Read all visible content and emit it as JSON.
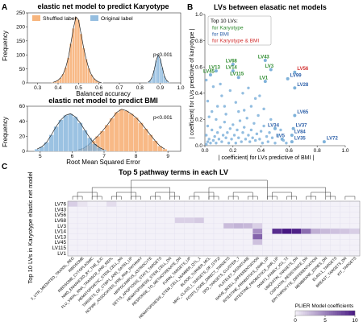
{
  "chart_data": [
    {
      "panel": "A",
      "type": "histogram",
      "title": "elastic net model to predict Karyotype",
      "xlabel": "Balanced accuracy",
      "ylabel": "Frequency",
      "xlim": [
        0.25,
        1.0
      ],
      "ylim": [
        0,
        250
      ],
      "xticks": [
        0.3,
        0.4,
        0.5,
        0.6,
        0.7,
        0.8,
        0.9,
        1.0
      ],
      "yticks": [
        0,
        50,
        100,
        150,
        200,
        250
      ],
      "legend": "top-left",
      "annotation": "p<0.001",
      "series": [
        {
          "name": "Shuffled label",
          "color": "#f5a25d",
          "x": [
            0.375,
            0.3875,
            0.4,
            0.4125,
            0.425,
            0.4375,
            0.45,
            0.4625,
            0.475,
            0.4875,
            0.5,
            0.5125,
            0.525,
            0.5375,
            0.55,
            0.5625,
            0.575,
            0.5875,
            0.6,
            0.6125
          ],
          "values": [
            2,
            5,
            10,
            18,
            32,
            55,
            90,
            140,
            195,
            235,
            225,
            175,
            125,
            85,
            52,
            30,
            16,
            8,
            3,
            1
          ]
        },
        {
          "name": "Original label",
          "color": "#7aaed8",
          "x": [
            0.84,
            0.85,
            0.86,
            0.87,
            0.88,
            0.89,
            0.9,
            0.91,
            0.92,
            0.93,
            0.94
          ],
          "values": [
            2,
            8,
            20,
            45,
            80,
            100,
            85,
            55,
            25,
            10,
            3
          ]
        }
      ]
    },
    {
      "panel": "A",
      "type": "histogram",
      "title": "elastic net model to predict BMI",
      "xlabel": "Root Mean Squared Error",
      "ylabel": "Frequency",
      "xlim": [
        4.6,
        9.4
      ],
      "ylim": [
        0,
        60
      ],
      "xticks": [
        5,
        6,
        7,
        8,
        9
      ],
      "yticks": [
        0,
        20,
        40,
        60
      ],
      "annotation": "p<0.001",
      "series": [
        {
          "name": "Shuffled label",
          "color": "#f5a25d",
          "x": [
            6.2,
            6.35,
            6.5,
            6.65,
            6.8,
            6.95,
            7.1,
            7.25,
            7.4,
            7.55,
            7.7,
            7.85,
            8.0,
            8.15,
            8.3,
            8.45,
            8.6,
            8.75,
            8.9
          ],
          "values": [
            2,
            4,
            8,
            14,
            20,
            27,
            35,
            44,
            52,
            56,
            54,
            50,
            45,
            38,
            30,
            22,
            14,
            7,
            3
          ]
        },
        {
          "name": "Original label",
          "color": "#7aaed8",
          "x": [
            4.9,
            5.05,
            5.2,
            5.35,
            5.5,
            5.65,
            5.8,
            5.95,
            6.1,
            6.25,
            6.4,
            6.55,
            6.7,
            6.85,
            7.0
          ],
          "values": [
            3,
            6,
            12,
            22,
            33,
            42,
            48,
            50,
            46,
            38,
            28,
            18,
            10,
            5,
            2
          ]
        }
      ]
    },
    {
      "panel": "B",
      "type": "scatter",
      "title": "LVs between elasatic net models",
      "xlabel": "| coefficient| for LVs predictive of BMI |",
      "ylabel": "| coefficient| for LVs predictive of karyotype |",
      "xlim": [
        0,
        1.0
      ],
      "ylim": [
        0,
        1.0
      ],
      "xticks": [
        0.0,
        0.2,
        0.4,
        0.6,
        0.8,
        1.0
      ],
      "yticks": [
        0.0,
        0.2,
        0.4,
        0.6,
        0.8,
        1.0
      ],
      "legend": "top-left",
      "legend_title": "Top 10 LVs:",
      "legend_entries": [
        {
          "label": "for Karyotype",
          "color": "#2e8b2e"
        },
        {
          "label": "for BMI",
          "color": "#2c5fa8"
        },
        {
          "label": "for Karyotype & BMI",
          "color": "#d23030"
        }
      ],
      "point_color": "#7fb2da",
      "labeled_points": [
        {
          "label": "LV76",
          "x": 0.2,
          "y": 0.89,
          "group": "karyotype"
        },
        {
          "label": "LV68",
          "x": 0.2,
          "y": 0.62,
          "group": "karyotype"
        },
        {
          "label": "LV43",
          "x": 0.43,
          "y": 0.65,
          "group": "karyotype"
        },
        {
          "label": "LV13",
          "x": 0.08,
          "y": 0.57,
          "group": "karyotype"
        },
        {
          "label": "LV14",
          "x": 0.2,
          "y": 0.57,
          "group": "karyotype"
        },
        {
          "label": "LV3",
          "x": 0.47,
          "y": 0.58,
          "group": "karyotype"
        },
        {
          "label": "LV45",
          "x": 0.04,
          "y": 0.54,
          "group": "karyotype"
        },
        {
          "label": "LV115",
          "x": 0.24,
          "y": 0.52,
          "group": "karyotype"
        },
        {
          "label": "LV1",
          "x": 0.43,
          "y": 0.49,
          "group": "karyotype"
        },
        {
          "label": "LV56",
          "x": 0.64,
          "y": 0.56,
          "group": "both"
        },
        {
          "label": "LV99",
          "x": 0.59,
          "y": 0.51,
          "group": "bmi"
        },
        {
          "label": "LV28",
          "x": 0.64,
          "y": 0.44,
          "group": "bmi"
        },
        {
          "label": "LV65",
          "x": 0.64,
          "y": 0.23,
          "group": "bmi"
        },
        {
          "label": "LV34",
          "x": 0.5,
          "y": 0.13,
          "group": "bmi"
        },
        {
          "label": "LV37",
          "x": 0.63,
          "y": 0.13,
          "group": "bmi"
        },
        {
          "label": "LV84",
          "x": 0.62,
          "y": 0.08,
          "group": "bmi"
        },
        {
          "label": "LV5",
          "x": 0.55,
          "y": 0.05,
          "group": "bmi"
        },
        {
          "label": "LV35",
          "x": 0.62,
          "y": 0.03,
          "group": "bmi"
        },
        {
          "label": "LV72",
          "x": 0.85,
          "y": 0.03,
          "group": "bmi"
        }
      ],
      "points": [
        [
          0.01,
          0.01
        ],
        [
          0.02,
          0.03
        ],
        [
          0.03,
          0.05
        ],
        [
          0.01,
          0.08
        ],
        [
          0.04,
          0.02
        ],
        [
          0.05,
          0.12
        ],
        [
          0.06,
          0.04
        ],
        [
          0.02,
          0.15
        ],
        [
          0.07,
          0.07
        ],
        [
          0.08,
          0.02
        ],
        [
          0.09,
          0.1
        ],
        [
          0.1,
          0.05
        ],
        [
          0.03,
          0.22
        ],
        [
          0.11,
          0.14
        ],
        [
          0.12,
          0.03
        ],
        [
          0.13,
          0.08
        ],
        [
          0.14,
          0.18
        ],
        [
          0.15,
          0.06
        ],
        [
          0.16,
          0.1
        ],
        [
          0.17,
          0.02
        ],
        [
          0.18,
          0.13
        ],
        [
          0.19,
          0.05
        ],
        [
          0.2,
          0.16
        ],
        [
          0.21,
          0.08
        ],
        [
          0.22,
          0.02
        ],
        [
          0.23,
          0.12
        ],
        [
          0.24,
          0.06
        ],
        [
          0.25,
          0.19
        ],
        [
          0.26,
          0.03
        ],
        [
          0.27,
          0.1
        ],
        [
          0.28,
          0.14
        ],
        [
          0.29,
          0.05
        ],
        [
          0.3,
          0.21
        ],
        [
          0.31,
          0.08
        ],
        [
          0.32,
          0.03
        ],
        [
          0.33,
          0.12
        ],
        [
          0.34,
          0.06
        ],
        [
          0.35,
          0.17
        ],
        [
          0.36,
          0.04
        ],
        [
          0.37,
          0.09
        ],
        [
          0.38,
          0.23
        ],
        [
          0.39,
          0.05
        ],
        [
          0.4,
          0.11
        ],
        [
          0.41,
          0.02
        ],
        [
          0.42,
          0.15
        ],
        [
          0.44,
          0.07
        ],
        [
          0.45,
          0.03
        ],
        [
          0.46,
          0.1
        ],
        [
          0.48,
          0.06
        ],
        [
          0.5,
          0.02
        ],
        [
          0.52,
          0.08
        ],
        [
          0.54,
          0.12
        ],
        [
          0.56,
          0.04
        ],
        [
          0.58,
          0.02
        ],
        [
          0.05,
          0.26
        ],
        [
          0.09,
          0.3
        ],
        [
          0.15,
          0.24
        ],
        [
          0.22,
          0.33
        ],
        [
          0.28,
          0.27
        ],
        [
          0.33,
          0.3
        ],
        [
          0.12,
          0.38
        ],
        [
          0.36,
          0.36
        ],
        [
          0.18,
          0.42
        ],
        [
          0.06,
          0.45
        ],
        [
          0.27,
          0.4
        ],
        [
          0.42,
          0.28
        ],
        [
          0.02,
          0.34
        ],
        [
          0.31,
          0.44
        ],
        [
          0.01,
          0.5
        ],
        [
          0.14,
          0.3
        ],
        [
          0.47,
          0.2
        ],
        [
          0.24,
          0.26
        ],
        [
          0.08,
          0.2
        ],
        [
          0.39,
          0.38
        ],
        [
          0.11,
          0.47
        ]
      ]
    },
    {
      "panel": "C",
      "type": "heatmap",
      "title": "Top 5 pathway terms in each LV",
      "ylabel": "Top 10 LVs in Karyotype elastic net model",
      "colorbar_label": "PLIER Model coefficients",
      "colorbar_ticks": [
        0,
        5,
        10
      ],
      "color_range": [
        0,
        10
      ],
      "rows": [
        "LV76",
        "LV43",
        "LV56",
        "LV68",
        "LV3",
        "LV14",
        "LV13",
        "LV45",
        "LV115",
        "LV1"
      ],
      "columns": [
        "3_UTR_MEDIATED_TRANSL_REG",
        "RIBOSOME",
        "RIBOSOME_CYTOPLASMIC",
        "NMD_ENHANCED_BY_THE_EJC",
        "FLU_VIRAL_RNA_TRANSCR_AND_REPL",
        "HEMATOPOIETIC_STEM_CELL_DN",
        "TARGETS_OF_CTBP1_AND_SATB1_UP",
        "NCPIRF_ASSOCIATED_PRE_RNA_PATHWAY",
        "HIPPOCAMPUS_ASTROCYTE",
        "SETTS_APOPTOSIS_STAT3_TARGETS",
        "HEMATOPOIESIS_STEM_CELL_DN",
        "RESPONSE_TO_METHOTREXATE_DN",
        "FURIN_TARGETS_UP",
        "HEMATOPOIESIS_STEM_CELL_NUMBER_QTL_1",
        "BLOOD_TURNER_MCL",
        "MHC_CLASS_I_TARGETS_OF_GTF2I",
        "FOXP3_CORE_DIRECT_TARGETS",
        "SPD_TARGETS_CLUSTER_7",
        "PLATELET_SIGNATURE",
        "NAIVE_BCELL_DIFFERENTIATION",
        "INTESTINE_PROBIOTICS_24HR_UP",
        "INTESTINE_PROBIOTICS_2HR_UP",
        "DNMT1_FAMILY_IG1_T2",
        "UBIQUITIN_TARGETS_DN",
        "CISPLATIN_RESISTANCE_DN",
        "ERYTHROCYTE_DIFFERENTIATION",
        "MEMBRANE_ZONES_DN",
        "ELAVL1_TARGETS",
        "BREAST_TARGETS_DN",
        "KIT_TARGETS"
      ],
      "values": [
        [
          1.6,
          0.6,
          0,
          0,
          0.9,
          0,
          0,
          0,
          0,
          0,
          0,
          0,
          0,
          0,
          0,
          0,
          0,
          0,
          0,
          0,
          0,
          0,
          0,
          0,
          0,
          0,
          0,
          0,
          0,
          0
        ],
        [
          0,
          0,
          0,
          0,
          0,
          0,
          0,
          0,
          0,
          0,
          0,
          0,
          0,
          0,
          0,
          0,
          0,
          0,
          0,
          0,
          0,
          0,
          0,
          0,
          0,
          0,
          0,
          0,
          0,
          0
        ],
        [
          0,
          0,
          0,
          0,
          0,
          0,
          0,
          0,
          0,
          0,
          0,
          0,
          0,
          0,
          0,
          0,
          0,
          0,
          0,
          0,
          0,
          0,
          0,
          0,
          0,
          0,
          0,
          0,
          0,
          0
        ],
        [
          0,
          0,
          0,
          0,
          0,
          0,
          0,
          0,
          0,
          0,
          0,
          1.5,
          1.5,
          1.8,
          0,
          0,
          0,
          0,
          0,
          0,
          0,
          0,
          0,
          0,
          0,
          0,
          0,
          0,
          0,
          0
        ],
        [
          0,
          0,
          0,
          0,
          0,
          0,
          0,
          0,
          0,
          0,
          0,
          0,
          0,
          0,
          0,
          0,
          2.4,
          2.8,
          2.6,
          1.5,
          0,
          0,
          0,
          0,
          0,
          0,
          0,
          0,
          0,
          0
        ],
        [
          0,
          0,
          0,
          0,
          0,
          0,
          0,
          0,
          0,
          0,
          0,
          0,
          0,
          0,
          0,
          0,
          0,
          0,
          0,
          4.5,
          0,
          9,
          10,
          9.5,
          6,
          3,
          2.5,
          2.2,
          2,
          1.6
        ],
        [
          0,
          0,
          0,
          0,
          0,
          0,
          0,
          0,
          0,
          0,
          0,
          0,
          0,
          0,
          0,
          0,
          0,
          0,
          0,
          6.5,
          0,
          0,
          0,
          0,
          0,
          0,
          0,
          0,
          0,
          0
        ],
        [
          0,
          0,
          0,
          0,
          0,
          0,
          0,
          0,
          0,
          0,
          0,
          0,
          0,
          0,
          0,
          0,
          0,
          0,
          0,
          2.2,
          0,
          0,
          0,
          0,
          0,
          0,
          0,
          0,
          0,
          0
        ],
        [
          0,
          0,
          0,
          0,
          0,
          0,
          0,
          0,
          0,
          0,
          0,
          0,
          0,
          0,
          0,
          0,
          0,
          0,
          0,
          0,
          0,
          0,
          0,
          0,
          0,
          0,
          0,
          0,
          0,
          0
        ],
        [
          0,
          0,
          0,
          0,
          0,
          0,
          0,
          0,
          0,
          0,
          0,
          0,
          0,
          0,
          0,
          0,
          0,
          0,
          0,
          0,
          0,
          0,
          0,
          0,
          0,
          0,
          0,
          0,
          0,
          0
        ]
      ]
    }
  ]
}
